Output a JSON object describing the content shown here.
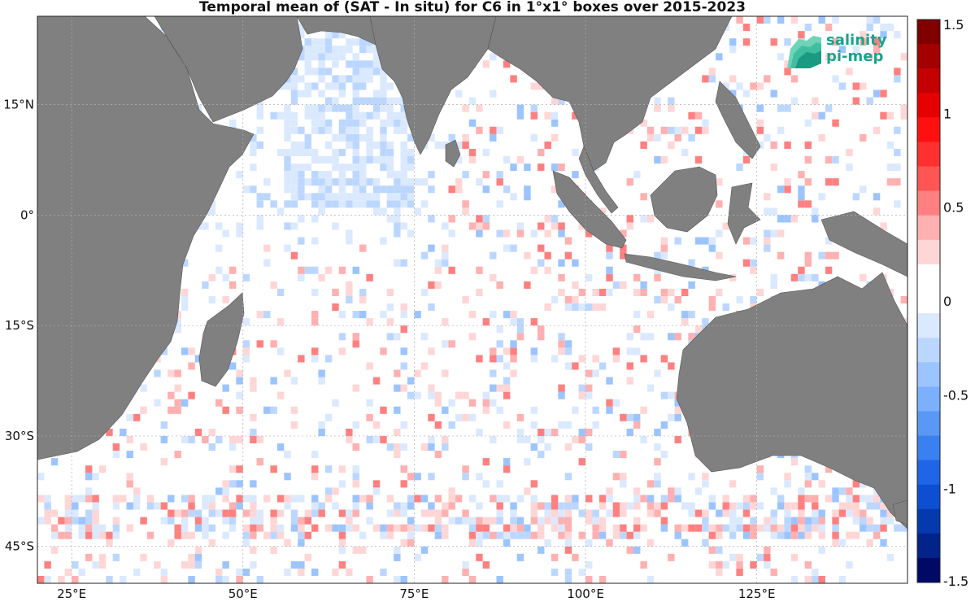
{
  "title": "Temporal mean of (SAT - In situ) for C6 in 1°x1° boxes over 2015-2023",
  "map": {
    "lon_range": [
      20,
      147
    ],
    "lat_range": [
      -50,
      27
    ],
    "lon_ticks": [
      {
        "value": 25,
        "label": "25°E"
      },
      {
        "value": 50,
        "label": "50°E"
      },
      {
        "value": 75,
        "label": "75°E"
      },
      {
        "value": 100,
        "label": "100°E"
      },
      {
        "value": 125,
        "label": "125°E"
      }
    ],
    "lat_ticks": [
      {
        "value": 15,
        "label": "15°N"
      },
      {
        "value": 0,
        "label": "0°"
      },
      {
        "value": -15,
        "label": "15°S"
      },
      {
        "value": -30,
        "label": "30°S"
      },
      {
        "value": -45,
        "label": "45°S"
      }
    ],
    "land_color": "#808080",
    "ocean_color": "#ffffff"
  },
  "colorbar": {
    "range": [
      -1.5,
      1.5
    ],
    "ticks": [
      {
        "value": 1.5,
        "label": "1.5"
      },
      {
        "value": 1,
        "label": "1"
      },
      {
        "value": 0.5,
        "label": "0.5"
      },
      {
        "value": 0,
        "label": "0"
      },
      {
        "value": -0.5,
        "label": "-0.5"
      },
      {
        "value": -1,
        "label": "-1"
      },
      {
        "value": -1.5,
        "label": "-1.5"
      }
    ],
    "colors_top_to_bottom": [
      "#800000",
      "#a30000",
      "#c40000",
      "#e60000",
      "#ff1010",
      "#ff3030",
      "#ff5555",
      "#ff8080",
      "#ffb0b0",
      "#ffd6d6",
      "#ffffff",
      "#ffffff",
      "#dbe9ff",
      "#bcd7ff",
      "#9cc4ff",
      "#7cb0ff",
      "#5a98f5",
      "#3a80f0",
      "#1f66e6",
      "#0d4fd0",
      "#0539b0",
      "#02238a",
      "#000a66"
    ]
  },
  "logo": {
    "line1": "salinity",
    "line2": "pi-mep",
    "color": "#1aa48c"
  }
}
